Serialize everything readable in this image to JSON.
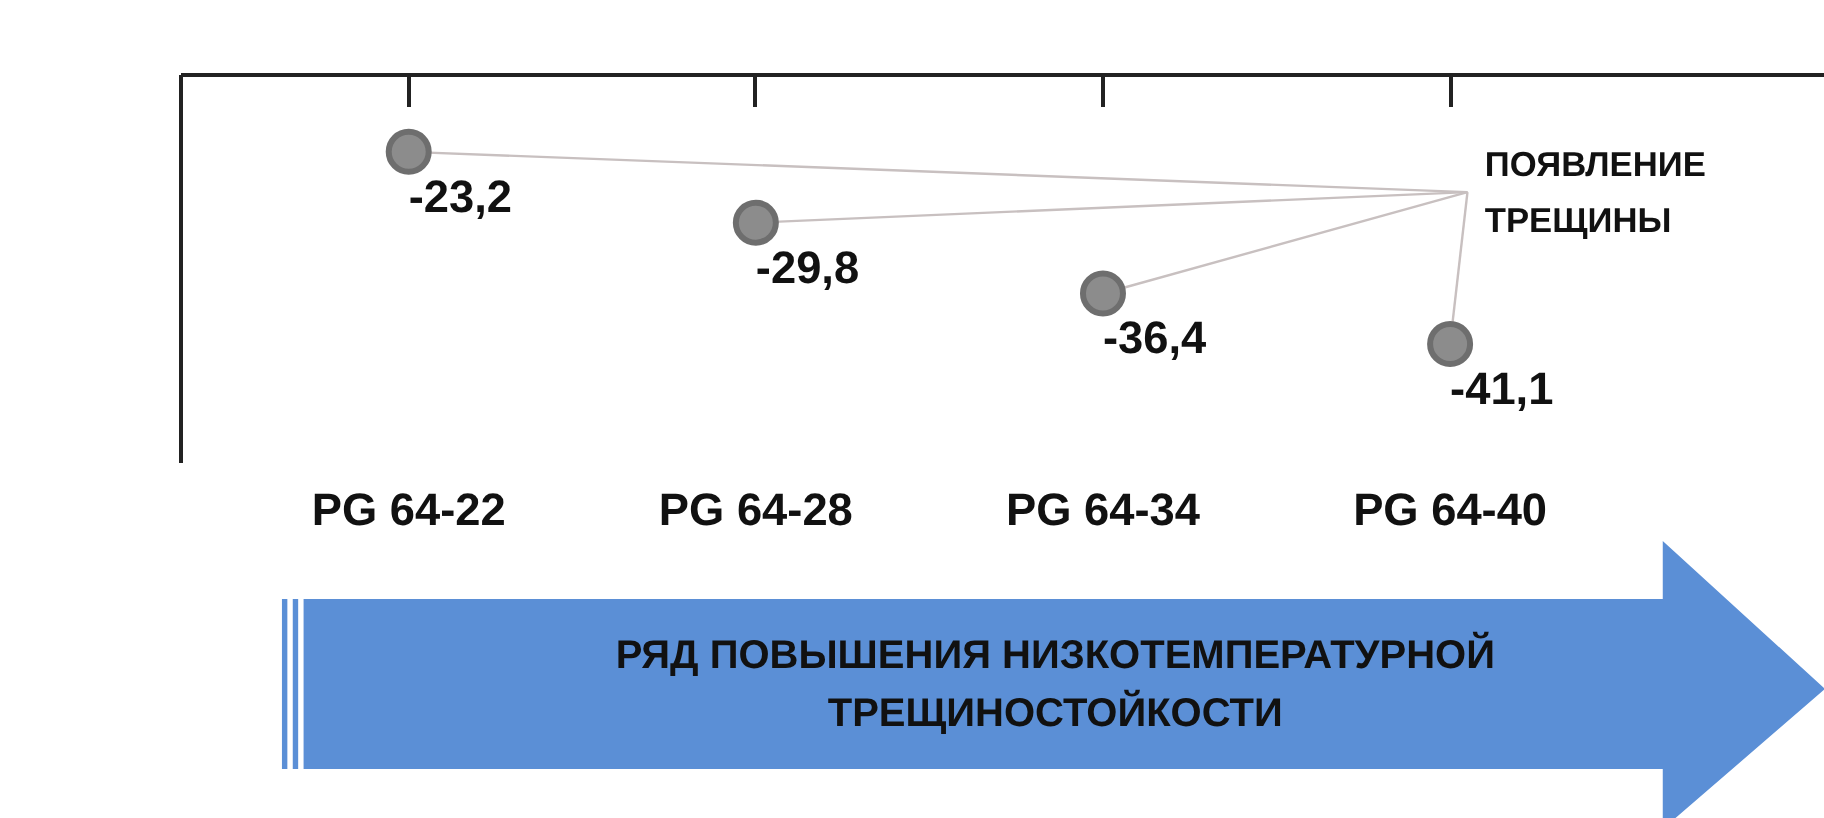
{
  "chart_data": {
    "type": "scatter",
    "categories": [
      "PG 64-22",
      "PG 64-28",
      "PG 64-34",
      "PG 64-40"
    ],
    "values": [
      -23.2,
      -29.8,
      -36.4,
      -41.1
    ],
    "value_labels": [
      "-23,2",
      "-29,8",
      "-36,4",
      "-41,1"
    ],
    "color": "#8c8c8c",
    "marker": "circle",
    "tick_labels": "x",
    "grid": false,
    "annotations": [
      "ПОЯВЛЕНИЕ ТРЕЩИНЫ",
      "РЯД ПОВЫШЕНИЯ НИЗКОТЕМПЕРАТУРНОЙ ТРЕЩИНОСТОЙКОСТИ"
    ]
  }
}
